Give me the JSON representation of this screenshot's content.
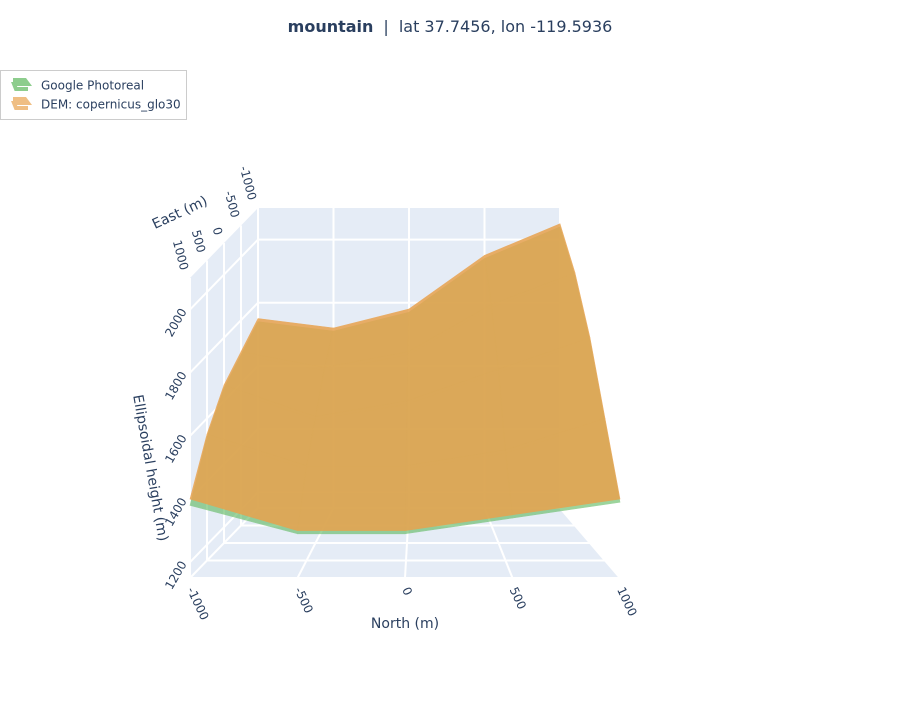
{
  "chart_data": {
    "type": "surface3d",
    "title": "mountain",
    "title_separator": "|",
    "subtitle": "lat 37.7456,  lon -119.5936",
    "x_label": "North (m)",
    "y_label": "East (m)",
    "z_label": "Ellipsoidal height (m)",
    "legend": "top-left",
    "x": [
      -1000,
      -500,
      0,
      500,
      1000
    ],
    "y": [
      -1000,
      -500,
      0,
      500,
      1000
    ],
    "xlim": [
      -1000,
      1000
    ],
    "ylim": [
      -1000,
      1000
    ],
    "zlim": [
      1150,
      2100
    ],
    "xticks": [
      -1000,
      -500,
      0,
      500,
      1000
    ],
    "yticks": [
      -1000,
      -500,
      0,
      500,
      1000
    ],
    "zticks": [
      1200,
      1400,
      1600,
      1800,
      2000
    ],
    "series": [
      {
        "name": "Google Photoreal",
        "color": "#5cb85c",
        "opacity": 0.6,
        "z": [
          [
            1740,
            1710,
            1770,
            1940,
            2040
          ],
          [
            1690,
            1640,
            1690,
            1840,
            1940
          ],
          [
            1640,
            1540,
            1590,
            1690,
            1790
          ],
          [
            1540,
            1440,
            1440,
            1490,
            1590
          ],
          [
            1380,
            1290,
            1290,
            1340,
            1390
          ]
        ]
      },
      {
        "name": "DEM: copernicus_glo30",
        "color": "#e8a24e",
        "opacity": 0.85,
        "z": [
          [
            1750,
            1720,
            1780,
            1950,
            2050
          ],
          [
            1700,
            1650,
            1700,
            1850,
            1950
          ],
          [
            1650,
            1550,
            1600,
            1700,
            1800
          ],
          [
            1550,
            1450,
            1450,
            1500,
            1600
          ],
          [
            1400,
            1300,
            1300,
            1350,
            1400
          ]
        ]
      }
    ]
  }
}
